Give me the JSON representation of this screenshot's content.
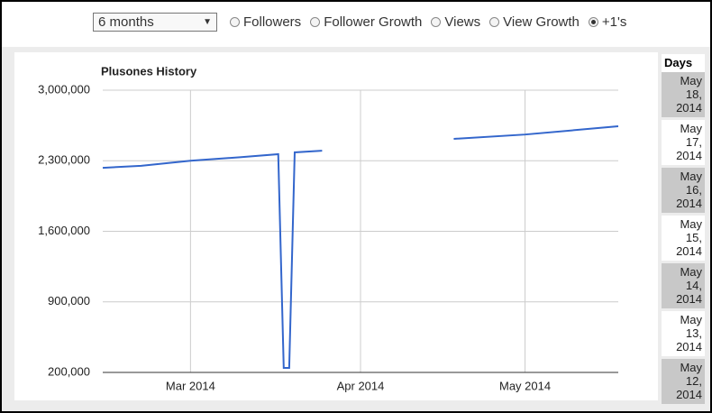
{
  "controls": {
    "range_select": "6 months",
    "radios": [
      {
        "label": "Followers",
        "checked": false
      },
      {
        "label": "Follower Growth",
        "checked": false
      },
      {
        "label": "Views",
        "checked": false
      },
      {
        "label": "View Growth",
        "checked": false
      },
      {
        "label": "+1's",
        "checked": true
      }
    ]
  },
  "chart_data": {
    "type": "line",
    "title": "Plusones History",
    "color": "#3366cc",
    "grid": true,
    "x": [
      "2014-02-13",
      "2014-02-20",
      "2014-03-01",
      "2014-03-10",
      "2014-03-17",
      "2014-03-18",
      "2014-03-19",
      "2014-03-20",
      "2014-03-25",
      "2014-04-05",
      "2014-04-18",
      "2014-05-01",
      "2014-05-18"
    ],
    "values": [
      2230000,
      2250000,
      2300000,
      2335000,
      2365000,
      245000,
      245000,
      2383000,
      2400000,
      null,
      2517000,
      2560000,
      2642000
    ],
    "xlim": [
      "2014-02-13",
      "2014-05-18"
    ],
    "xticks": [
      {
        "value": "2014-03-01",
        "label": "Mar 2014"
      },
      {
        "value": "2014-04-01",
        "label": "Apr 2014"
      },
      {
        "value": "2014-05-01",
        "label": "May 2014"
      }
    ],
    "ylim": [
      200000,
      3000000
    ],
    "yticks": [
      {
        "value": 200000,
        "label": "200,000"
      },
      {
        "value": 900000,
        "label": "900,000"
      },
      {
        "value": 1600000,
        "label": "1,600,000"
      },
      {
        "value": 2300000,
        "label": "2,300,000"
      },
      {
        "value": 3000000,
        "label": "3,000,000"
      }
    ]
  },
  "days_table": {
    "header": "Days",
    "rows": [
      "May 18, 2014",
      "May 17, 2014",
      "May 16, 2014",
      "May 15, 2014",
      "May 14, 2014",
      "May 13, 2014",
      "May 12, 2014"
    ]
  }
}
